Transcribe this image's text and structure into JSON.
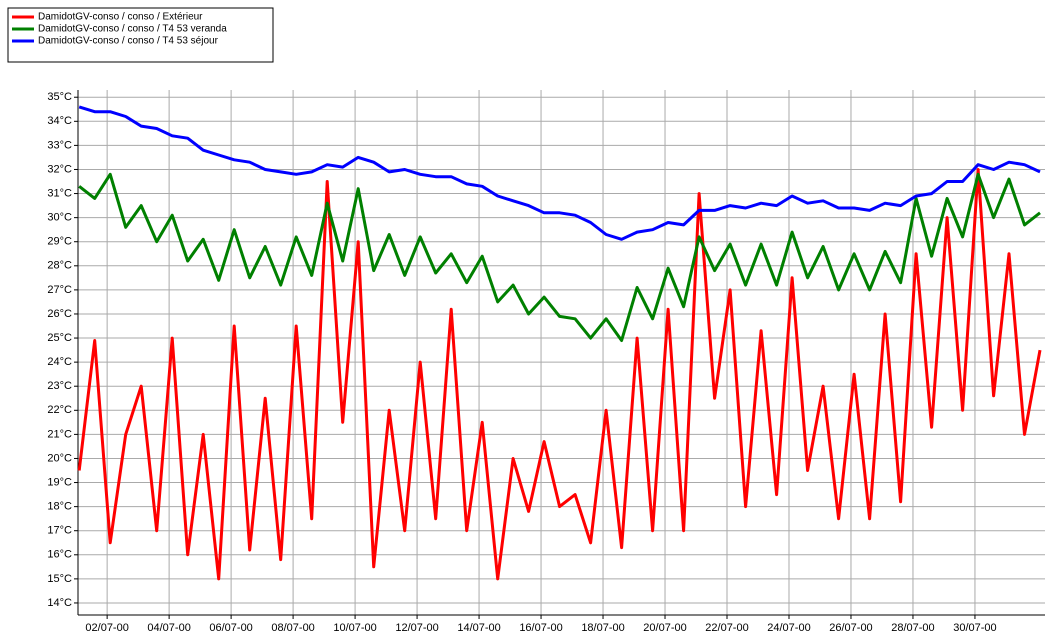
{
  "chart_data": {
    "type": "line",
    "x": [
      1.1,
      1.6,
      2.1,
      2.6,
      3.1,
      3.6,
      4.1,
      4.6,
      5.1,
      5.6,
      6.1,
      6.6,
      7.1,
      7.6,
      8.1,
      8.6,
      9.1,
      9.6,
      10.1,
      10.6,
      11.1,
      11.6,
      12.1,
      12.6,
      13.1,
      13.6,
      14.1,
      14.6,
      15.1,
      15.6,
      16.1,
      16.6,
      17.1,
      17.6,
      18.1,
      18.6,
      19.1,
      19.6,
      20.1,
      20.6,
      21.1,
      21.6,
      22.1,
      22.6,
      23.1,
      23.6,
      24.1,
      24.6,
      25.1,
      25.6,
      26.1,
      26.6,
      27.1,
      27.6,
      28.1,
      28.6,
      29.1,
      29.6,
      30.1,
      30.6,
      31.1,
      31.6,
      32.1
    ],
    "series": [
      {
        "name": "DamidotGV-conso / conso / Extérieur",
        "color": "#ff0000",
        "values": [
          19.5,
          24.9,
          16.5,
          21,
          23,
          17,
          25,
          16,
          21,
          15,
          25.5,
          16.2,
          22.5,
          15.8,
          25.5,
          17.5,
          31.5,
          21.5,
          29,
          15.5,
          22,
          17,
          24,
          17.5,
          26.2,
          17,
          21.5,
          15,
          20,
          17.8,
          20.7,
          18,
          18.5,
          16.5,
          22,
          16.3,
          25,
          17,
          26.2,
          17,
          31,
          22.5,
          27,
          18,
          25.3,
          18.5,
          27.5,
          19.5,
          23,
          17.5,
          23.5,
          17.5,
          26,
          18.2,
          28.5,
          21.3,
          30,
          22,
          32,
          22.6,
          28.5,
          21,
          24.5
        ]
      },
      {
        "name": "DamidotGV-conso / conso / T4 53 veranda",
        "color": "#008000",
        "values": [
          31.3,
          30.8,
          31.8,
          29.6,
          30.5,
          29.0,
          30.1,
          28.2,
          29.1,
          27.4,
          29.5,
          27.5,
          28.8,
          27.2,
          29.2,
          27.6,
          30.6,
          28.2,
          31.2,
          27.8,
          29.3,
          27.6,
          29.2,
          27.7,
          28.5,
          27.3,
          28.4,
          26.5,
          27.2,
          26.0,
          26.7,
          25.9,
          25.8,
          25.0,
          25.8,
          24.9,
          27.1,
          25.8,
          27.9,
          26.3,
          29.2,
          27.8,
          28.9,
          27.2,
          28.9,
          27.2,
          29.4,
          27.5,
          28.8,
          27.0,
          28.5,
          27.0,
          28.6,
          27.3,
          30.8,
          28.4,
          30.8,
          29.2,
          31.8,
          30.0,
          31.6,
          29.7,
          30.2
        ]
      },
      {
        "name": "DamidotGV-conso / conso / T4 53 séjour",
        "color": "#0000ff",
        "values": [
          34.6,
          34.4,
          34.4,
          34.2,
          33.8,
          33.7,
          33.4,
          33.3,
          32.8,
          32.6,
          32.4,
          32.3,
          32.0,
          31.9,
          31.8,
          31.9,
          32.2,
          32.1,
          32.5,
          32.3,
          31.9,
          32.0,
          31.8,
          31.7,
          31.7,
          31.4,
          31.3,
          30.9,
          30.7,
          30.5,
          30.2,
          30.2,
          30.1,
          29.8,
          29.3,
          29.1,
          29.4,
          29.5,
          29.8,
          29.7,
          30.3,
          30.3,
          30.5,
          30.4,
          30.6,
          30.5,
          30.9,
          30.6,
          30.7,
          30.4,
          30.4,
          30.3,
          30.6,
          30.5,
          30.9,
          31.0,
          31.5,
          31.5,
          32.2,
          32.0,
          32.3,
          32.2,
          31.9
        ]
      }
    ],
    "xlim": [
      1.06,
      32.26
    ],
    "ylim": [
      13.5,
      35.3
    ],
    "xticks": [
      {
        "value": 2,
        "label": "02/07-00"
      },
      {
        "value": 4,
        "label": "04/07-00"
      },
      {
        "value": 6,
        "label": "06/07-00"
      },
      {
        "value": 8,
        "label": "08/07-00"
      },
      {
        "value": 10,
        "label": "10/07-00"
      },
      {
        "value": 12,
        "label": "12/07-00"
      },
      {
        "value": 14,
        "label": "14/07-00"
      },
      {
        "value": 16,
        "label": "16/07-00"
      },
      {
        "value": 18,
        "label": "18/07-00"
      },
      {
        "value": 20,
        "label": "20/07-00"
      },
      {
        "value": 22,
        "label": "22/07-00"
      },
      {
        "value": 24,
        "label": "24/07-00"
      },
      {
        "value": 26,
        "label": "26/07-00"
      },
      {
        "value": 28,
        "label": "28/07-00"
      },
      {
        "value": 30,
        "label": "30/07-00"
      }
    ],
    "yticks": [
      {
        "value": 14,
        "label": "14°C"
      },
      {
        "value": 15,
        "label": "15°C"
      },
      {
        "value": 16,
        "label": "16°C"
      },
      {
        "value": 17,
        "label": "17°C"
      },
      {
        "value": 18,
        "label": "18°C"
      },
      {
        "value": 19,
        "label": "19°C"
      },
      {
        "value": 20,
        "label": "20°C"
      },
      {
        "value": 21,
        "label": "21°C"
      },
      {
        "value": 22,
        "label": "22°C"
      },
      {
        "value": 23,
        "label": "23°C"
      },
      {
        "value": 24,
        "label": "24°C"
      },
      {
        "value": 25,
        "label": "25°C"
      },
      {
        "value": 26,
        "label": "26°C"
      },
      {
        "value": 27,
        "label": "27°C"
      },
      {
        "value": 28,
        "label": "28°C"
      },
      {
        "value": 29,
        "label": "29°C"
      },
      {
        "value": 30,
        "label": "30°C"
      },
      {
        "value": 31,
        "label": "31°C"
      },
      {
        "value": 32,
        "label": "32°C"
      },
      {
        "value": 33,
        "label": "33°C"
      },
      {
        "value": 34,
        "label": "34°C"
      },
      {
        "value": 35,
        "label": "35°C"
      }
    ],
    "grid": true,
    "legend": "top-left"
  }
}
